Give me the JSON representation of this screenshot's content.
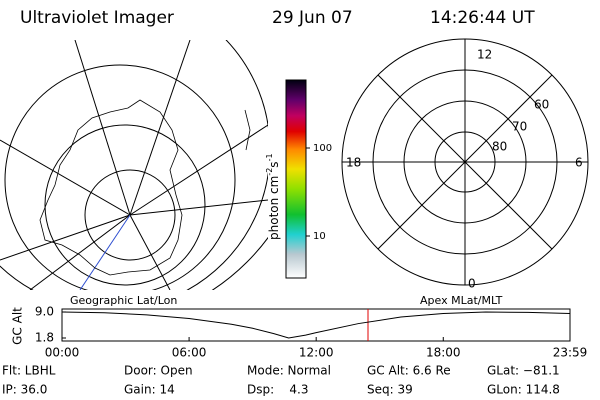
{
  "header": {
    "title": "Ultraviolet Imager",
    "date": "29 Jun 07",
    "time": "14:26:44 UT"
  },
  "colorbar": {
    "label": [
      "photon cm",
      "-2",
      "s",
      "-1"
    ],
    "ticks": [
      "100",
      "10"
    ]
  },
  "polar": {
    "mlt": [
      "12",
      "18",
      "6",
      "0"
    ],
    "mlat": [
      "80",
      "70",
      "60"
    ]
  },
  "chart_data": {
    "type": "line",
    "left_title": "Geographic Lat/Lon",
    "right_title": "Apex MLat/MLT",
    "y_label": "GC Alt",
    "x": [
      0,
      2,
      4,
      6,
      8,
      9,
      10,
      10.7,
      11.5,
      12,
      14,
      16,
      18,
      20,
      22,
      23.983
    ],
    "series": [
      {
        "color": "#000000",
        "values": [
          9.0,
          8.8,
          8.2,
          7.2,
          5.6,
          4.5,
          3.0,
          1.8,
          2.6,
          3.3,
          5.8,
          7.6,
          8.6,
          9.0,
          8.9,
          8.6
        ]
      }
    ],
    "xlim": [
      0,
      23.983
    ],
    "xticks": [
      {
        "value": 0,
        "label": "00:00"
      },
      {
        "value": 6,
        "label": "06:00"
      },
      {
        "value": 12,
        "label": "12:00"
      },
      {
        "value": 18,
        "label": "18:00"
      },
      {
        "value": 23.983,
        "label": "23:59"
      }
    ],
    "ylim": [
      1.8,
      9
    ],
    "yticks": [
      1.8,
      {
        "value": 9,
        "label": "9.0"
      }
    ]
  },
  "footer": [
    [
      "Flt: LBHL",
      "Door: Open",
      "Mode: Normal",
      "GC Alt: 6.6 Re",
      "GLat: −81.1"
    ],
    [
      "IP: 36.0",
      "Gain: 14",
      "Dsp:    4.3",
      "Seq: 39",
      "GLon: 114.8"
    ]
  ]
}
